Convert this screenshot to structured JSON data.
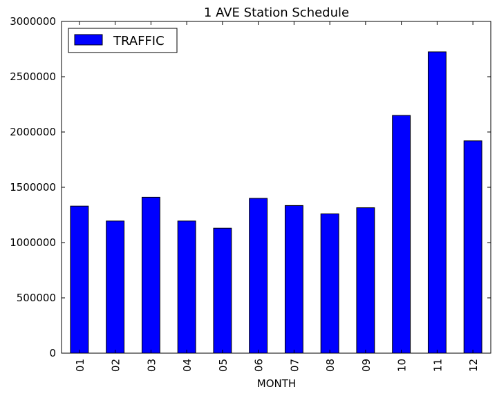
{
  "chart_data": {
    "type": "bar",
    "title": "1 AVE Station Schedule",
    "xlabel": "MONTH",
    "ylabel": "",
    "categories": [
      "01",
      "02",
      "03",
      "04",
      "05",
      "06",
      "07",
      "08",
      "09",
      "10",
      "11",
      "12"
    ],
    "series": [
      {
        "name": "TRAFFIC",
        "color": "#0000ff",
        "values": [
          1330000,
          1195000,
          1410000,
          1195000,
          1130000,
          1400000,
          1335000,
          1260000,
          1315000,
          2150000,
          2725000,
          1920000
        ]
      }
    ],
    "ylim": [
      0,
      3000000
    ],
    "yticks": [
      0,
      500000,
      1000000,
      1500000,
      2000000,
      2500000,
      3000000
    ],
    "ytick_labels": [
      "0",
      "500000",
      "1000000",
      "1500000",
      "2000000",
      "2500000",
      "3000000"
    ],
    "grid": false,
    "legend_position": "top-left"
  }
}
